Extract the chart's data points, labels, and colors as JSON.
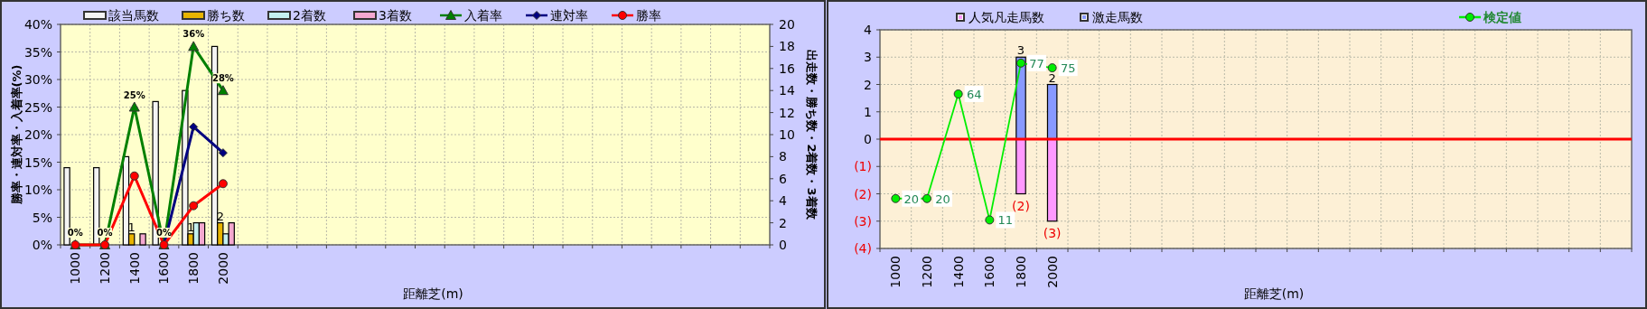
{
  "chart_data": [
    {
      "type": "bar",
      "categories": [
        "1000",
        "1200",
        "1400",
        "1600",
        "1800",
        "2000",
        null,
        null,
        null,
        null,
        null,
        null,
        null,
        null,
        null,
        null,
        null,
        null,
        null,
        null,
        null,
        null,
        null,
        null
      ],
      "xlabel": "距離芝(m)",
      "ylabel": "勝率・連対率・入着率(%)",
      "y2label": "出走数・勝ち数・2着数・3着数",
      "ylim": [
        0,
        40
      ],
      "yticks": [
        {
          "value": 0,
          "label": "0%"
        },
        {
          "value": 5,
          "label": "5%"
        },
        {
          "value": 10,
          "label": "10%"
        },
        {
          "value": 15,
          "label": "15%"
        },
        {
          "value": 20,
          "label": "20%"
        },
        {
          "value": 25,
          "label": "25%"
        },
        {
          "value": 30,
          "label": "30%"
        },
        {
          "value": 35,
          "label": "35%"
        },
        {
          "value": 40,
          "label": "40%"
        }
      ],
      "y2lim": [
        0,
        20
      ],
      "y2ticks": [
        0,
        2,
        4,
        6,
        8,
        10,
        12,
        14,
        16,
        18,
        20
      ],
      "grid": true,
      "legend": "top",
      "series": [
        {
          "name": "該当馬数",
          "color": "#f4f4f4",
          "axis": "y2",
          "values": [
            7,
            7,
            8,
            13,
            14,
            18,
            null,
            null,
            null,
            null,
            null,
            null,
            null,
            null,
            null,
            null,
            null,
            null,
            null,
            null,
            null,
            null,
            null,
            null
          ]
        },
        {
          "name": "勝ち数",
          "color": "#e8b400",
          "axis": "y2",
          "values": [
            0,
            0,
            1,
            0,
            1,
            2,
            null,
            null,
            null,
            null,
            null,
            null,
            null,
            null,
            null,
            null,
            null,
            null,
            null,
            null,
            null,
            null,
            null,
            null
          ],
          "value_labels": [
            null,
            null,
            "1",
            null,
            "1",
            "2",
            null,
            null,
            null,
            null,
            null,
            null,
            null,
            null,
            null,
            null,
            null,
            null,
            null,
            null,
            null,
            null,
            null,
            null
          ]
        },
        {
          "name": "2着数",
          "color": "#c4f0f0",
          "axis": "y2",
          "values": [
            0,
            0,
            0,
            0,
            2,
            1,
            null,
            null,
            null,
            null,
            null,
            null,
            null,
            null,
            null,
            null,
            null,
            null,
            null,
            null,
            null,
            null,
            null,
            null
          ]
        },
        {
          "name": "3着数",
          "color": "#f4a8d0",
          "axis": "y2",
          "values": [
            0,
            0,
            1,
            0,
            2,
            2,
            null,
            null,
            null,
            null,
            null,
            null,
            null,
            null,
            null,
            null,
            null,
            null,
            null,
            null,
            null,
            null,
            null,
            null
          ]
        },
        {
          "name": "入着率",
          "type": "line",
          "color": "#008000",
          "marker": "triangle",
          "values": [
            0,
            0,
            25,
            0,
            36,
            28,
            null,
            null,
            null,
            null,
            null,
            null,
            null,
            null,
            null,
            null,
            null,
            null,
            null,
            null,
            null,
            null,
            null,
            null
          ],
          "value_labels": [
            "0%",
            "0%",
            "25%",
            "0%",
            "36%",
            "28%",
            null,
            null,
            null,
            null,
            null,
            null,
            null,
            null,
            null,
            null,
            null,
            null,
            null,
            null,
            null,
            null,
            null,
            null
          ]
        },
        {
          "name": "連対率",
          "type": "line",
          "color": "#000080",
          "marker": "diamond",
          "values": [
            null,
            null,
            null,
            0,
            21.4,
            16.7,
            null,
            null,
            null,
            null,
            null,
            null,
            null,
            null,
            null,
            null,
            null,
            null,
            null,
            null,
            null,
            null,
            null,
            null
          ]
        },
        {
          "name": "勝率",
          "type": "line",
          "color": "#ff0000",
          "marker": "circle",
          "values": [
            0,
            0,
            12.5,
            0,
            7.1,
            11.1,
            null,
            null,
            null,
            null,
            null,
            null,
            null,
            null,
            null,
            null,
            null,
            null,
            null,
            null,
            null,
            null,
            null,
            null
          ]
        }
      ]
    },
    {
      "type": "bar",
      "categories": [
        "1000",
        "1200",
        "1400",
        "1600",
        "1800",
        "2000",
        null,
        null,
        null,
        null,
        null,
        null,
        null,
        null,
        null,
        null,
        null,
        null,
        null,
        null,
        null,
        null,
        null,
        null
      ],
      "xlabel": "距離芝(m)",
      "ylim": [
        -4,
        4
      ],
      "yticks": [
        {
          "value": -4,
          "label": "(4)"
        },
        {
          "value": -3,
          "label": "(3)"
        },
        {
          "value": -2,
          "label": "(2)"
        },
        {
          "value": -1,
          "label": "(1)"
        },
        0,
        1,
        2,
        3,
        4
      ],
      "y2lim": [
        -1,
        91
      ],
      "tick_labels": "xy",
      "grid": true,
      "legend": "top",
      "stacked": true,
      "ref_lines": [
        {
          "axis": "y",
          "value": 0,
          "color": "#ff0000"
        }
      ],
      "series": [
        {
          "name": "人気凡走馬数",
          "color": "#ff99ff",
          "values": [
            null,
            null,
            null,
            null,
            -2,
            -3,
            null,
            null,
            null,
            null,
            null,
            null,
            null,
            null,
            null,
            null,
            null,
            null,
            null,
            null,
            null,
            null,
            null,
            null
          ],
          "value_labels": [
            null,
            null,
            null,
            null,
            "(2)",
            "(3)",
            null,
            null,
            null,
            null,
            null,
            null,
            null,
            null,
            null,
            null,
            null,
            null,
            null,
            null,
            null,
            null,
            null,
            null
          ]
        },
        {
          "name": "激走馬数",
          "color": "#8899ff",
          "values": [
            null,
            null,
            null,
            null,
            3,
            2,
            null,
            null,
            null,
            null,
            null,
            null,
            null,
            null,
            null,
            null,
            null,
            null,
            null,
            null,
            null,
            null,
            null,
            null
          ],
          "value_labels": [
            null,
            null,
            null,
            null,
            "3",
            "2",
            null,
            null,
            null,
            null,
            null,
            null,
            null,
            null,
            null,
            null,
            null,
            null,
            null,
            null,
            null,
            null,
            null,
            null
          ]
        },
        {
          "name": "検定値",
          "type": "line",
          "color": "#00ee00",
          "marker": "circle",
          "axis": "y2",
          "values": [
            20,
            20,
            64,
            11,
            77,
            75,
            null,
            null,
            null,
            null,
            null,
            null,
            null,
            null,
            null,
            null,
            null,
            null,
            null,
            null,
            null,
            null,
            null,
            null
          ],
          "value_labels": [
            "20",
            "20",
            "64",
            "11",
            "77",
            "75",
            null,
            null,
            null,
            null,
            null,
            null,
            null,
            null,
            null,
            null,
            null,
            null,
            null,
            null,
            null,
            null,
            null,
            null
          ]
        }
      ]
    }
  ]
}
